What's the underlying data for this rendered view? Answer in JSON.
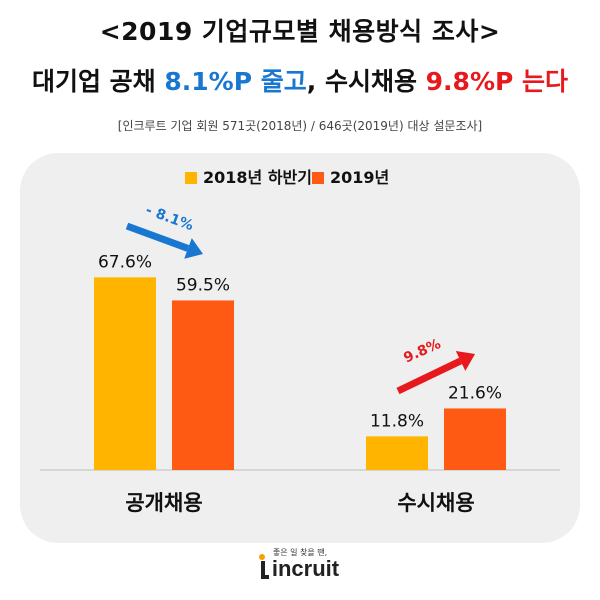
{
  "header": {
    "title": "<2019 기업규모별 채용방식 조사>",
    "subtitle_parts": [
      "대기업 공채 ",
      "8.1%P 줄고",
      ", 수시채용 ",
      "9.8%P 는다"
    ],
    "source": "[인크루트 기업 회원 571곳(2018년) / 646곳(2019년) 대상 설문조사]"
  },
  "chart_data": {
    "type": "bar",
    "categories": [
      "공개채용",
      "수시채용"
    ],
    "series": [
      {
        "name": "2018년 하반기",
        "values": [
          67.6,
          11.8
        ],
        "labels": [
          "67.6%",
          "11.8%"
        ],
        "color": "#ffb400"
      },
      {
        "name": "2019년",
        "values": [
          59.5,
          21.6
        ],
        "labels": [
          "59.5%",
          "21.6%"
        ],
        "color": "#ff5a14"
      }
    ],
    "ylim": [
      0,
      80
    ],
    "legend_position": "top-center",
    "annotations": [
      {
        "category": "공개채용",
        "text": "- 8.1%",
        "color": "#1877d1",
        "direction": "down"
      },
      {
        "category": "수시채용",
        "text": "9.8%",
        "color": "#e8191c",
        "direction": "up"
      }
    ]
  },
  "footer": {
    "tagline": "좋은 일 찾을 땐,",
    "logo_text": "incruit"
  }
}
